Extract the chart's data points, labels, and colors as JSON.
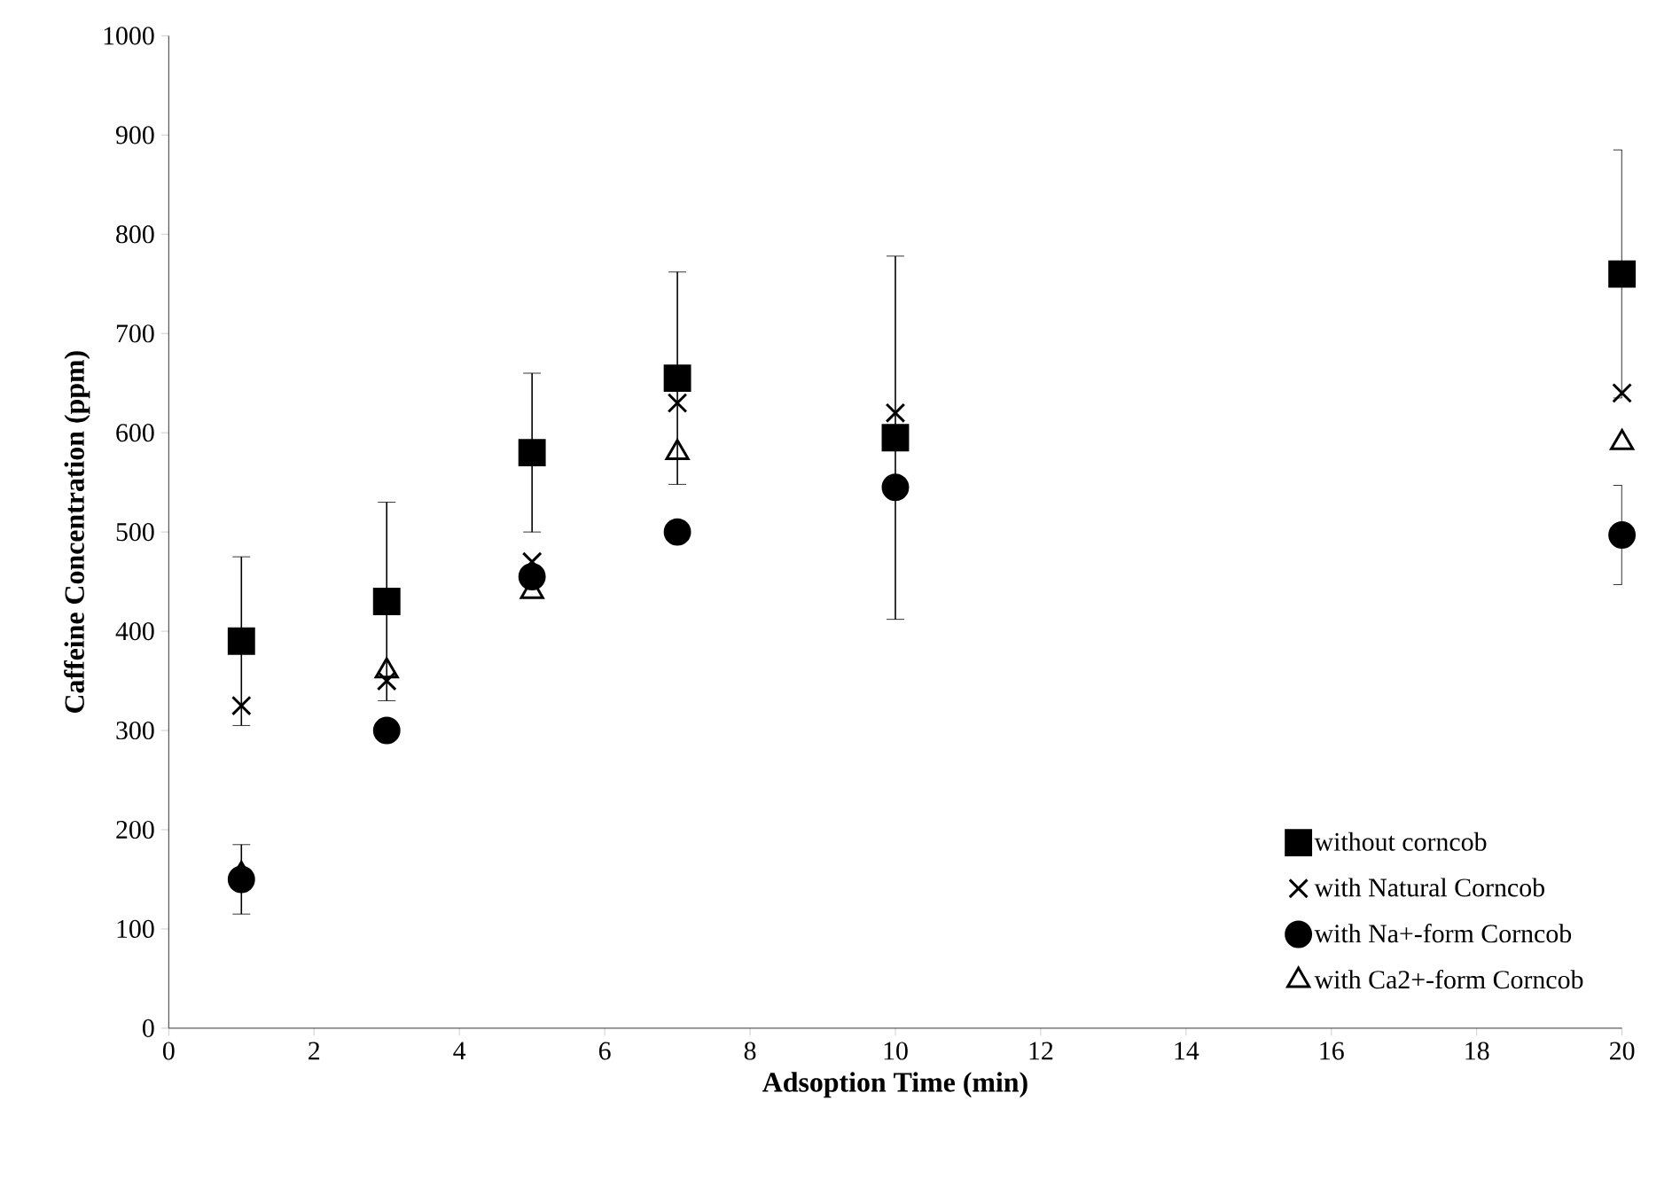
{
  "chart_data": {
    "type": "scatter",
    "xlabel": "Adsoption Time (min)",
    "ylabel": "Caffeine Concentration (ppm)",
    "x": [
      1,
      3,
      5,
      7,
      10,
      20
    ],
    "xlim": [
      0,
      20
    ],
    "xticks": [
      0,
      2,
      4,
      6,
      8,
      10,
      12,
      14,
      16,
      18,
      20
    ],
    "ylim": [
      0,
      1000
    ],
    "yticks": [
      0,
      100,
      200,
      300,
      400,
      500,
      600,
      700,
      800,
      900,
      1000
    ],
    "grid": false,
    "legend": "bottom right",
    "series": [
      {
        "name": "without corncob",
        "color": "#000000",
        "marker": "square",
        "values": [
          390,
          430,
          580,
          655,
          595,
          760
        ],
        "errors": [
          85,
          100,
          80,
          107,
          183,
          125
        ]
      },
      {
        "name": "with Natural Corncob",
        "color": "#000000",
        "marker": "cross",
        "values": [
          325,
          350,
          470,
          630,
          620,
          640
        ]
      },
      {
        "name": "with Na+-form Corncob",
        "color": "#000000",
        "marker": "circle",
        "values": [
          150,
          300,
          455,
          500,
          545,
          497
        ],
        "errors": [
          35,
          null,
          null,
          null,
          null,
          50
        ]
      },
      {
        "name": "with Ca2+-form Corncob",
        "color": "#000000",
        "marker": "triangle",
        "values": [
          155,
          360,
          440,
          580,
          null,
          590
        ]
      }
    ]
  }
}
